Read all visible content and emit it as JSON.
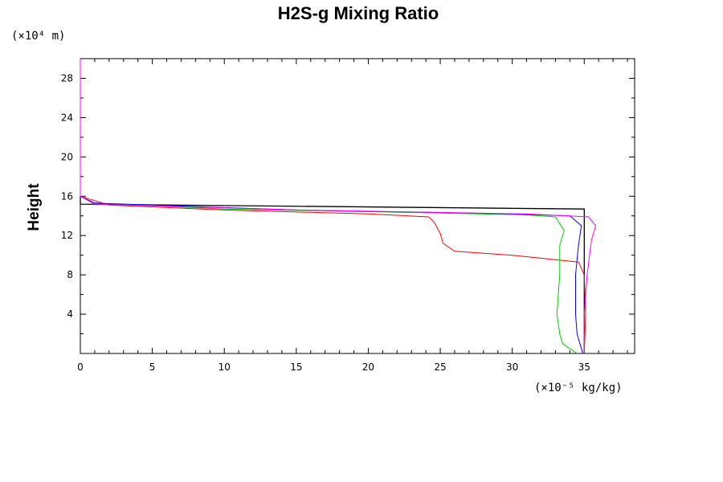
{
  "chart_data": {
    "type": "line",
    "title": "H2S-g Mixing Ratio",
    "ylabel": "Height",
    "xlabel": "",
    "y_units": "(×10⁴ m)",
    "x_units": "(×10⁻⁵ kg/kg)",
    "xlim": [
      0,
      38.5
    ],
    "ylim": [
      0,
      30
    ],
    "xticks": [
      "0",
      "5",
      "10",
      "15",
      "20",
      "25",
      "30",
      "35"
    ],
    "yticks": [
      "4",
      "8",
      "12",
      "16",
      "20",
      "24",
      "28"
    ],
    "grid": false,
    "series": [
      {
        "color": "#000000",
        "x": [
          35,
          35,
          35,
          35,
          35,
          35,
          0,
          0
        ],
        "y": [
          0,
          4,
          8,
          12,
          14.3,
          14.7,
          15.2,
          16
        ]
      },
      {
        "color": "#ff0000",
        "x": [
          35,
          35.1,
          35.0,
          34.6,
          30,
          26,
          25.2,
          25,
          24.6,
          24.2,
          20,
          10,
          2,
          0,
          0
        ],
        "y": [
          0,
          4,
          8,
          9.3,
          10.0,
          10.4,
          11.2,
          12.2,
          13.3,
          13.9,
          14.2,
          14.6,
          15.1,
          16,
          30
        ]
      },
      {
        "color": "#00cc00",
        "x": [
          34.5,
          33.5,
          33.3,
          33.1,
          33.3,
          33.3,
          33.6,
          33.0,
          31,
          25,
          10,
          1,
          0
        ],
        "y": [
          0,
          1,
          2,
          4,
          8,
          11.0,
          12.5,
          13.9,
          14.1,
          14.3,
          14.7,
          15.3,
          16
        ]
      },
      {
        "color": "#0000ff",
        "x": [
          34.9,
          34.5,
          34.4,
          34.4,
          34.6,
          34.8,
          34.0,
          30,
          15,
          1,
          0
        ],
        "y": [
          0,
          2,
          4,
          8,
          11.0,
          13.0,
          14.0,
          14.2,
          14.6,
          15.3,
          16
        ]
      },
      {
        "color": "#ff00ff",
        "x": [
          35.0,
          35.0,
          35.2,
          35.5,
          35.8,
          35.3,
          31,
          15,
          1,
          0,
          0
        ],
        "y": [
          0,
          4,
          8,
          11.5,
          13.0,
          13.9,
          14.2,
          14.6,
          15.2,
          16,
          30
        ]
      }
    ]
  }
}
